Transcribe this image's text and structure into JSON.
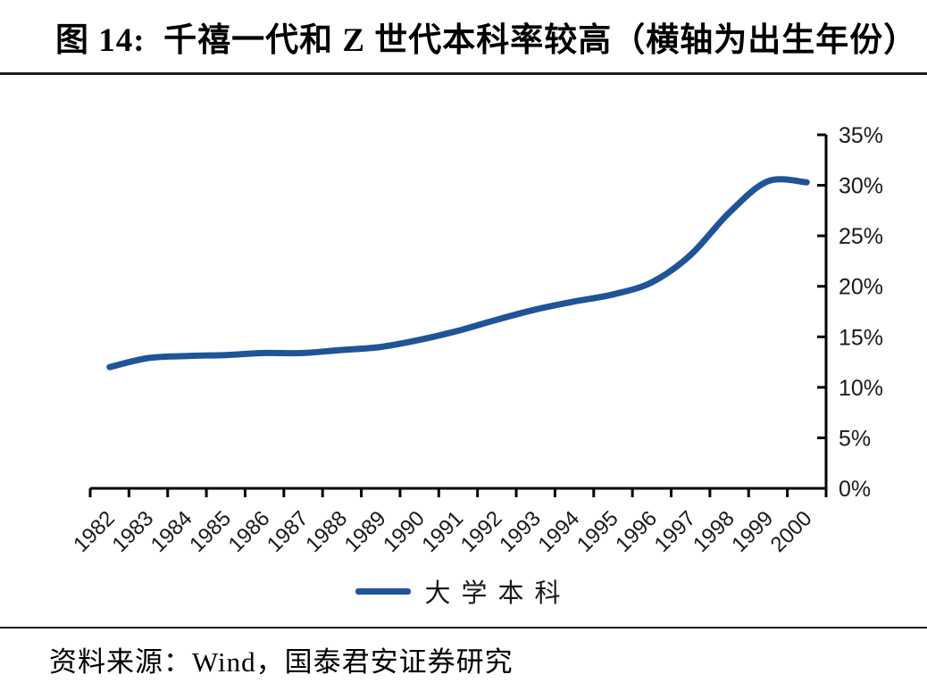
{
  "figure": {
    "title": "图 14:  千禧一代和 Z 世代本科率较高（横轴为出生年份）",
    "source": "资料来源：Wind，国泰君安证券研究"
  },
  "legend": {
    "series_label": "大学本科",
    "swatch_color": "#1F5498"
  },
  "colors": {
    "line": "#1F5498",
    "axis": "#000000",
    "rule": "#1a1a1a"
  },
  "chart_data": {
    "type": "line",
    "title": "千禧一代和 Z 世代本科率较高（横轴为出生年份）",
    "x": [
      "1982",
      "1983",
      "1984",
      "1985",
      "1986",
      "1987",
      "1988",
      "1989",
      "1990",
      "1991",
      "1992",
      "1993",
      "1994",
      "1995",
      "1996",
      "1997",
      "1998",
      "1999",
      "2000"
    ],
    "series": [
      {
        "name": "大学本科",
        "color": "#1F5498",
        "values": [
          12.0,
          12.9,
          13.1,
          13.2,
          13.4,
          13.4,
          13.7,
          14.0,
          14.7,
          15.6,
          16.7,
          17.7,
          18.5,
          19.2,
          20.4,
          23.1,
          27.3,
          30.4,
          30.3
        ]
      }
    ],
    "ylim": [
      0,
      35
    ],
    "ytick_step": 5,
    "ytick_labels": [
      "0%",
      "5%",
      "10%",
      "15%",
      "20%",
      "25%",
      "30%",
      "35%"
    ],
    "y_axis_side": "right",
    "grid": false,
    "smooth": true,
    "legend_position": "bottom"
  }
}
